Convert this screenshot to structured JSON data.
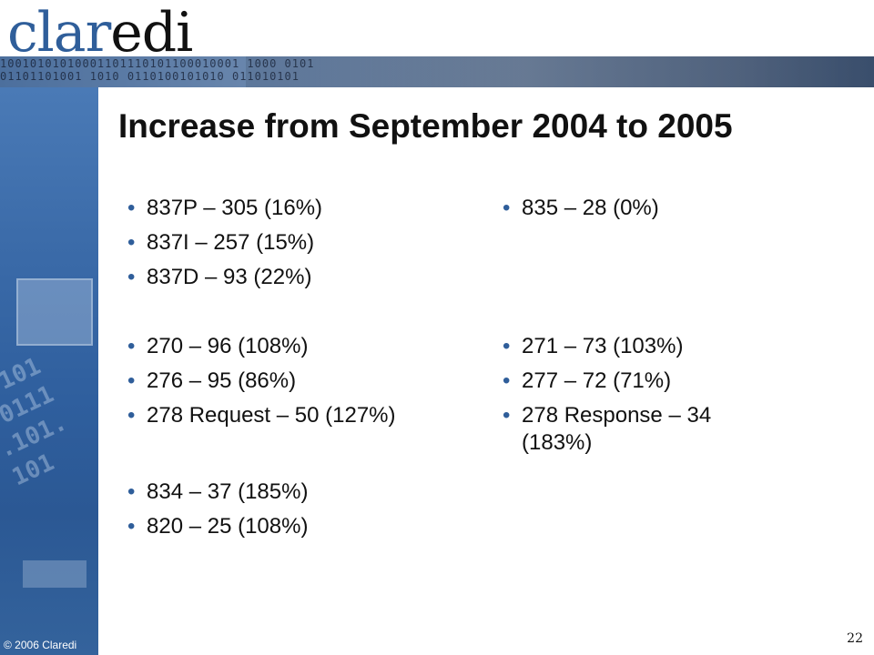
{
  "logo": {
    "part1": "clar",
    "part2": "edi"
  },
  "slide": {
    "title": "Increase from September 2004 to 2005"
  },
  "left_column": [
    "837P – 305 (16%)",
    "837I  – 257 (15%)",
    "837D – 93 (22%)",
    "270 – 96 (108%)",
    "276 – 95 (86%)",
    "278 Request – 50 (127%)",
    "834 – 37 (185%)",
    "820 – 25 (108%)"
  ],
  "right_column": [
    "835 – 28 (0%)",
    "271 – 73 (103%)",
    "277 – 72 (71%)",
    "278 Response – 34 (183%)"
  ],
  "bullet_symbol": "•",
  "footer": {
    "copyright": "© 2006 Claredi",
    "page_number": "22"
  },
  "colors": {
    "brand_blue": "#2f5e9a",
    "text": "#111111"
  }
}
